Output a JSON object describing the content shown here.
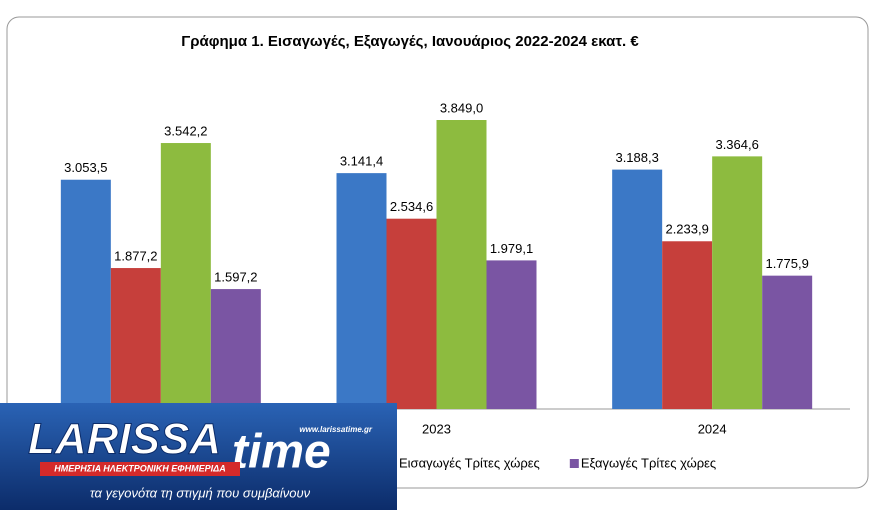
{
  "chart_data": {
    "type": "bar",
    "title": "Γράφημα 1. Εισαγωγές, Εξαγωγές, Ιανουάριος 2022-2024 εκατ. €",
    "categories": [
      null,
      "2023",
      "2024"
    ],
    "series": [
      {
        "color": "#3b78c6",
        "values": [
          3053.5,
          3141.4,
          3188.3
        ],
        "value_labels": [
          "3.053,5",
          "3.141,4",
          "3.188,3"
        ]
      },
      {
        "color": "#c63f3b",
        "values": [
          1877.2,
          2534.6,
          2233.9
        ],
        "value_labels": [
          "1.877,2",
          "2.534,6",
          "2.233,9"
        ]
      },
      {
        "name": "Εισαγωγές Τρίτες χώρες",
        "color": "#8dbb3f",
        "values": [
          3542.2,
          3849.0,
          3364.6
        ],
        "value_labels": [
          "3.542,2",
          "3.849,0",
          "3.364,6"
        ]
      },
      {
        "name": "Εξαγωγές Τρίτες χώρες",
        "color": "#7a55a3",
        "values": [
          1597.2,
          1979.1,
          1775.9
        ],
        "value_labels": [
          "1.597,2",
          "1.979,1",
          "1.775,9"
        ]
      }
    ],
    "legend": "bottom"
  },
  "logo": {
    "name_left": "LARISSA",
    "name_right": "time",
    "url": "www.larissatime.gr",
    "subtitle": "ΗΜΕΡΗΣΙΑ ΗΛΕΚΤΡΟΝΙΚΗ ΕΦΗΜΕΡΙΔΑ",
    "slogan": "τα γεγονότα τη στιγμή που συμβαίνουν"
  }
}
